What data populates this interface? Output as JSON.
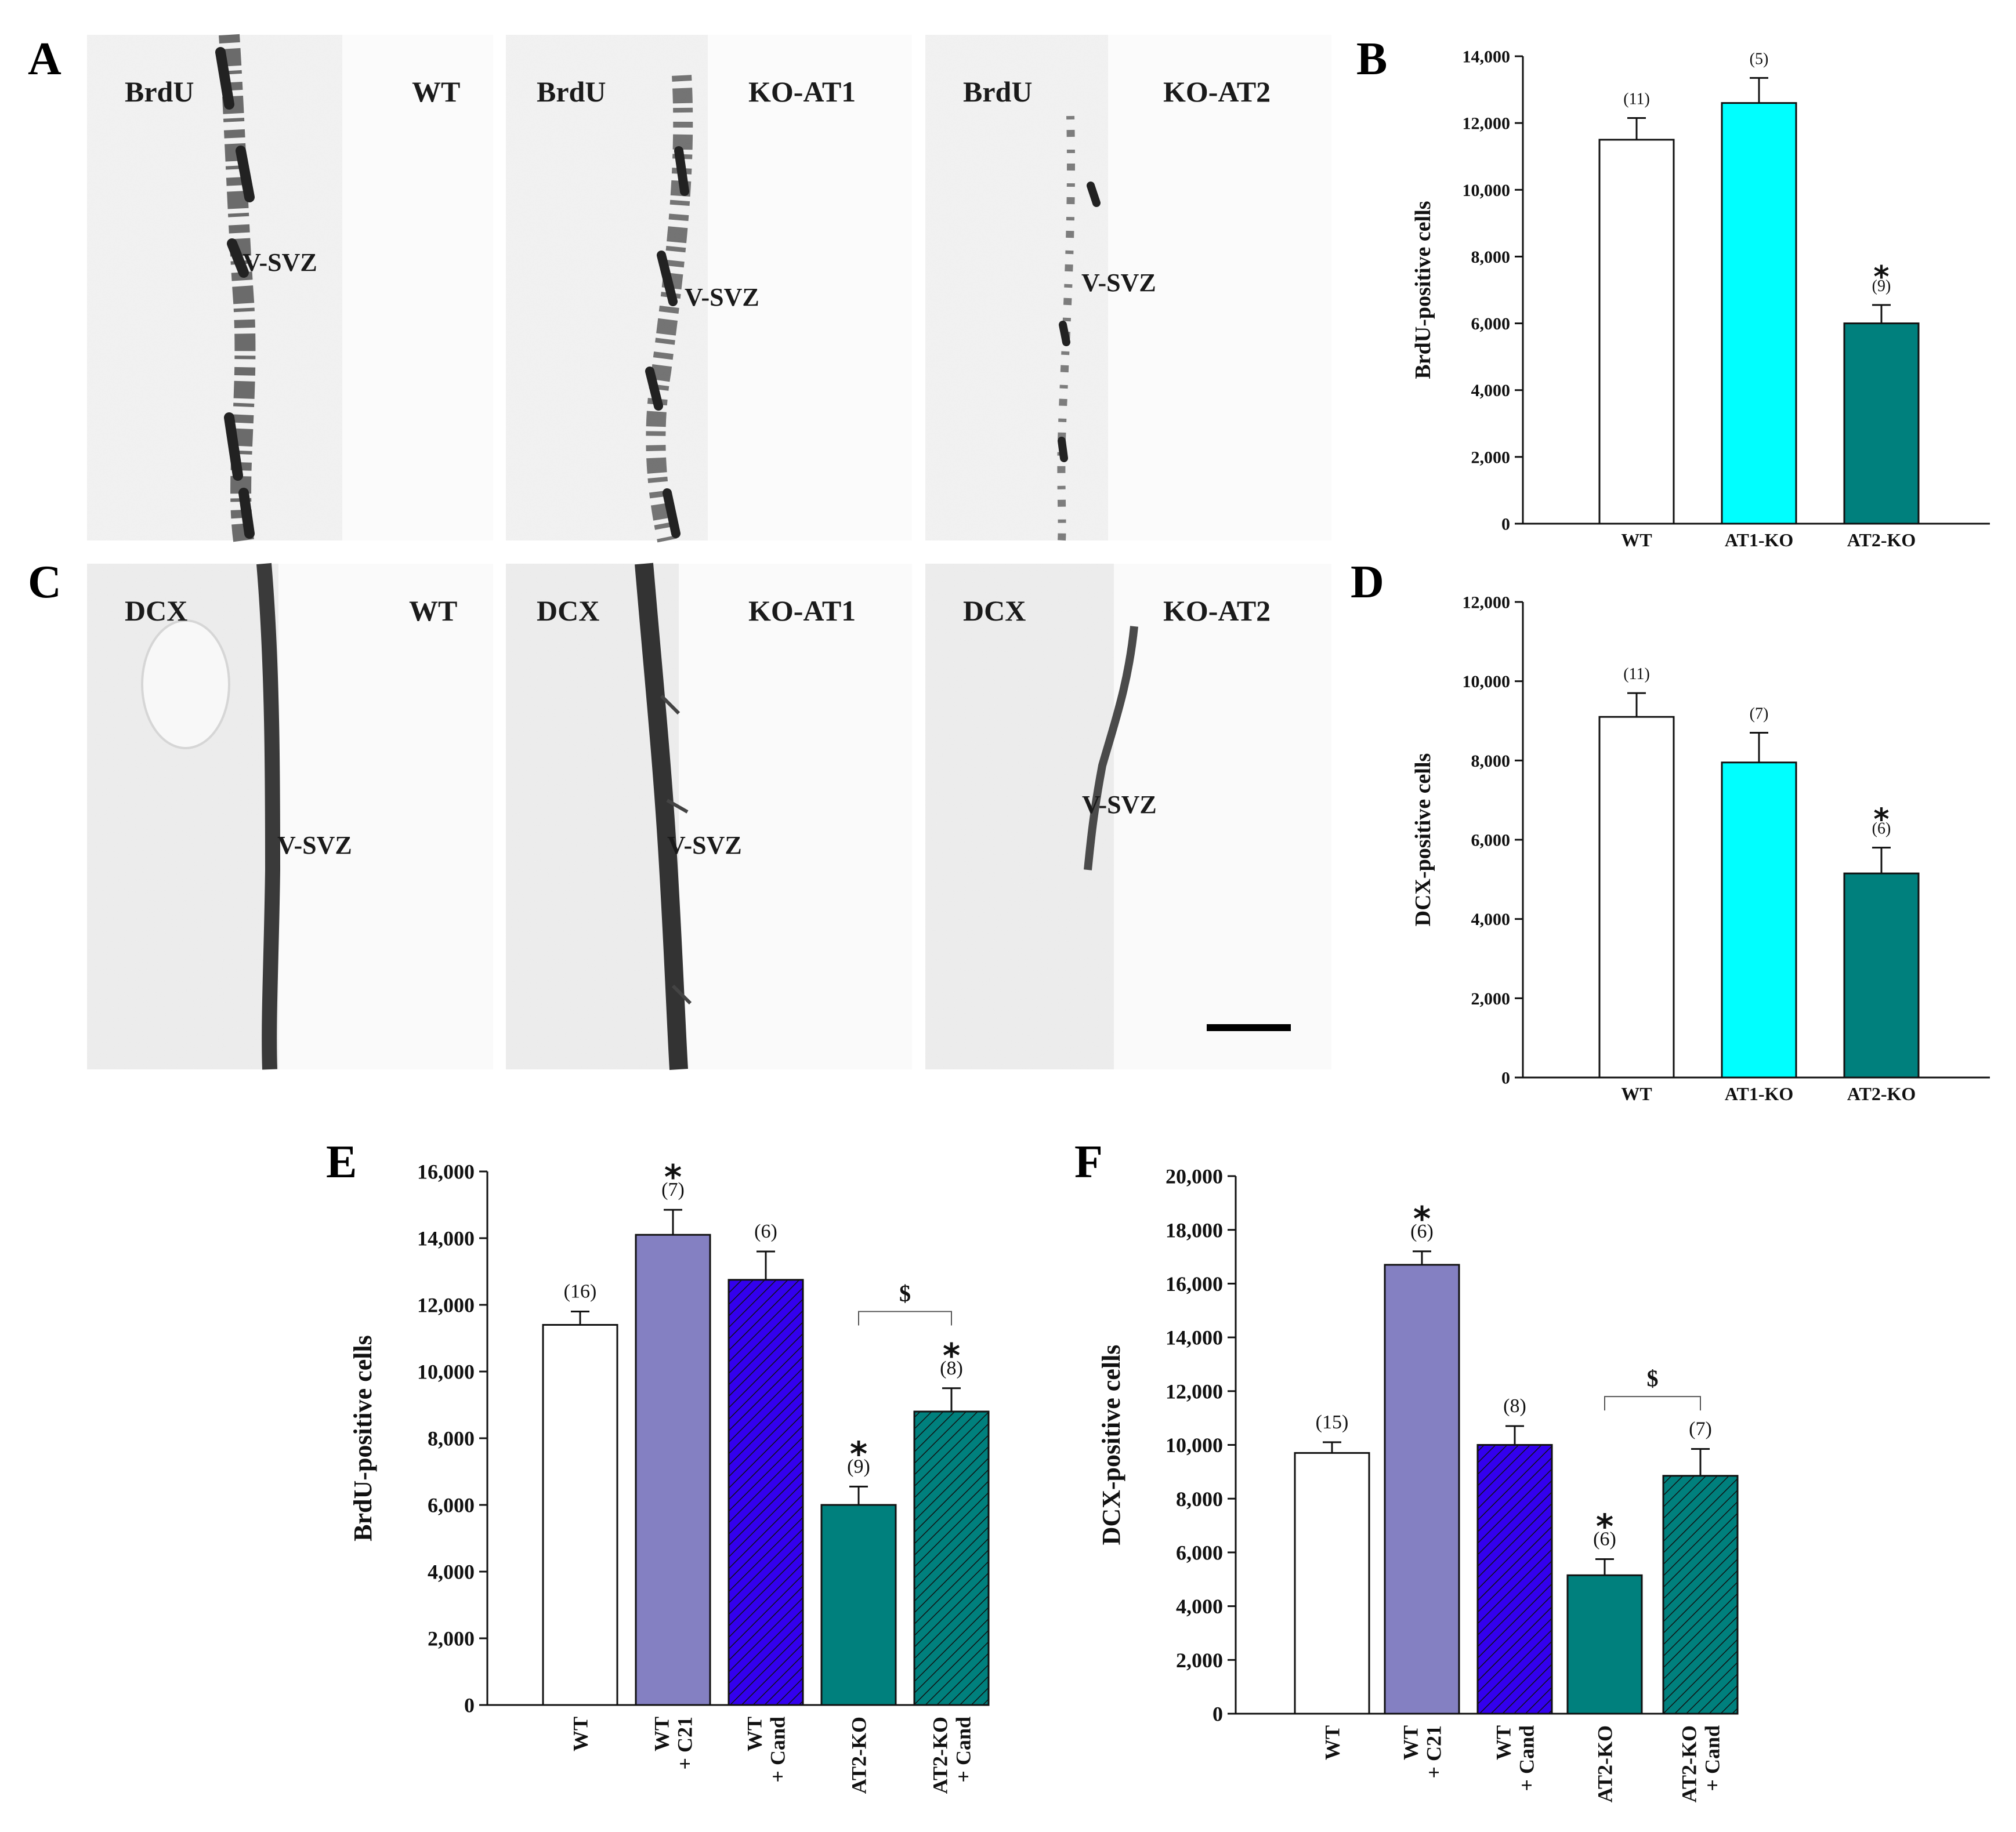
{
  "figure": {
    "micrograph_panels": [
      {
        "letter": "A",
        "stain": "BrdU",
        "rows": [
          {
            "genotype": "WT",
            "zone": "V-SVZ"
          },
          {
            "genotype": "KO-AT1",
            "zone": "V-SVZ"
          },
          {
            "genotype": "KO-AT2",
            "zone": "V-SVZ"
          }
        ]
      },
      {
        "letter": "C",
        "stain": "DCX",
        "rows": [
          {
            "genotype": "WT",
            "zone": "V-SVZ"
          },
          {
            "genotype": "KO-AT1",
            "zone": "V-SVZ"
          },
          {
            "genotype": "KO-AT2",
            "zone": "V-SVZ"
          }
        ]
      }
    ]
  },
  "colors": {
    "white_bar": "#ffffff",
    "cyan_bar": "#00ffff",
    "teal_bar": "#00807d",
    "lavender_bar": "#8480c2",
    "blue_bar": "#3300ee",
    "axis": "#111111"
  },
  "chart_data": [
    {
      "panel": "B",
      "type": "bar",
      "ylabel": "BrdU-positive cells",
      "ylim": [
        0,
        14000
      ],
      "yticks": [
        "0",
        "2,000",
        "4,000",
        "6,000",
        "8,000",
        "10,000",
        "12,000",
        "14,000"
      ],
      "categories": [
        "WT",
        "AT1-KO",
        "AT2-KO"
      ],
      "values": [
        11500,
        12600,
        6000
      ],
      "errors": [
        650,
        750,
        550
      ],
      "n": [
        "(11)",
        "(5)",
        "(9)"
      ],
      "significance": [
        "",
        "",
        "*"
      ],
      "fills": [
        "white",
        "cyan",
        "teal"
      ],
      "hatch": [
        false,
        false,
        false
      ],
      "bracket": null
    },
    {
      "panel": "D",
      "type": "bar",
      "ylabel": "DCX-positive cells",
      "ylim": [
        0,
        12000
      ],
      "yticks": [
        "0",
        "2,000",
        "4,000",
        "6,000",
        "8,000",
        "10,000",
        "12,000"
      ],
      "categories": [
        "WT",
        "AT1-KO",
        "AT2-KO"
      ],
      "values": [
        9100,
        7950,
        5150
      ],
      "errors": [
        600,
        750,
        650
      ],
      "n": [
        "(11)",
        "(7)",
        "(6)"
      ],
      "significance": [
        "",
        "",
        "*"
      ],
      "fills": [
        "white",
        "cyan",
        "teal"
      ],
      "hatch": [
        false,
        false,
        false
      ],
      "bracket": null
    },
    {
      "panel": "E",
      "type": "bar",
      "ylabel": "BrdU-positive cells",
      "ylim": [
        0,
        16000
      ],
      "yticks": [
        "0",
        "2,000",
        "4,000",
        "6,000",
        "8,000",
        "10,000",
        "12,000",
        "14,000",
        "16,000"
      ],
      "categories": [
        [
          "WT"
        ],
        [
          "WT",
          "+ C21"
        ],
        [
          "WT",
          "+ Cand"
        ],
        [
          "AT2-KO"
        ],
        [
          "AT2-KO",
          "+ Cand"
        ]
      ],
      "values": [
        11400,
        14100,
        12750,
        6000,
        8800
      ],
      "errors": [
        400,
        750,
        850,
        550,
        700
      ],
      "n": [
        "(16)",
        "(7)",
        "(6)",
        "(9)",
        "(8)"
      ],
      "significance": [
        "",
        "*",
        "",
        "*",
        "*"
      ],
      "fills": [
        "white",
        "lavender",
        "blue",
        "teal",
        "teal"
      ],
      "hatch": [
        false,
        false,
        true,
        false,
        true
      ],
      "bracket": {
        "from": 3,
        "to": 4,
        "symbol": "$",
        "y": 11800
      }
    },
    {
      "panel": "F",
      "type": "bar",
      "ylabel": "DCX-positive cells",
      "ylim": [
        0,
        20000
      ],
      "yticks": [
        "0",
        "2,000",
        "4,000",
        "6,000",
        "8,000",
        "10,000",
        "12,000",
        "14,000",
        "16,000",
        "18,000",
        "20,000"
      ],
      "categories": [
        [
          "WT"
        ],
        [
          "WT",
          "+ C21"
        ],
        [
          "WT",
          "+ Cand"
        ],
        [
          "AT2-KO"
        ],
        [
          "AT2-KO",
          "+ Cand"
        ]
      ],
      "values": [
        9700,
        16700,
        10000,
        5150,
        8850
      ],
      "errors": [
        400,
        500,
        700,
        600,
        1000
      ],
      "n": [
        "(15)",
        "(6)",
        "(8)",
        "(6)",
        "(7)"
      ],
      "significance": [
        "",
        "*",
        "",
        "*",
        ""
      ],
      "fills": [
        "white",
        "lavender",
        "blue",
        "teal",
        "teal"
      ],
      "hatch": [
        false,
        false,
        true,
        false,
        true
      ],
      "bracket": {
        "from": 3,
        "to": 4,
        "symbol": "$",
        "y": 11800
      }
    }
  ]
}
